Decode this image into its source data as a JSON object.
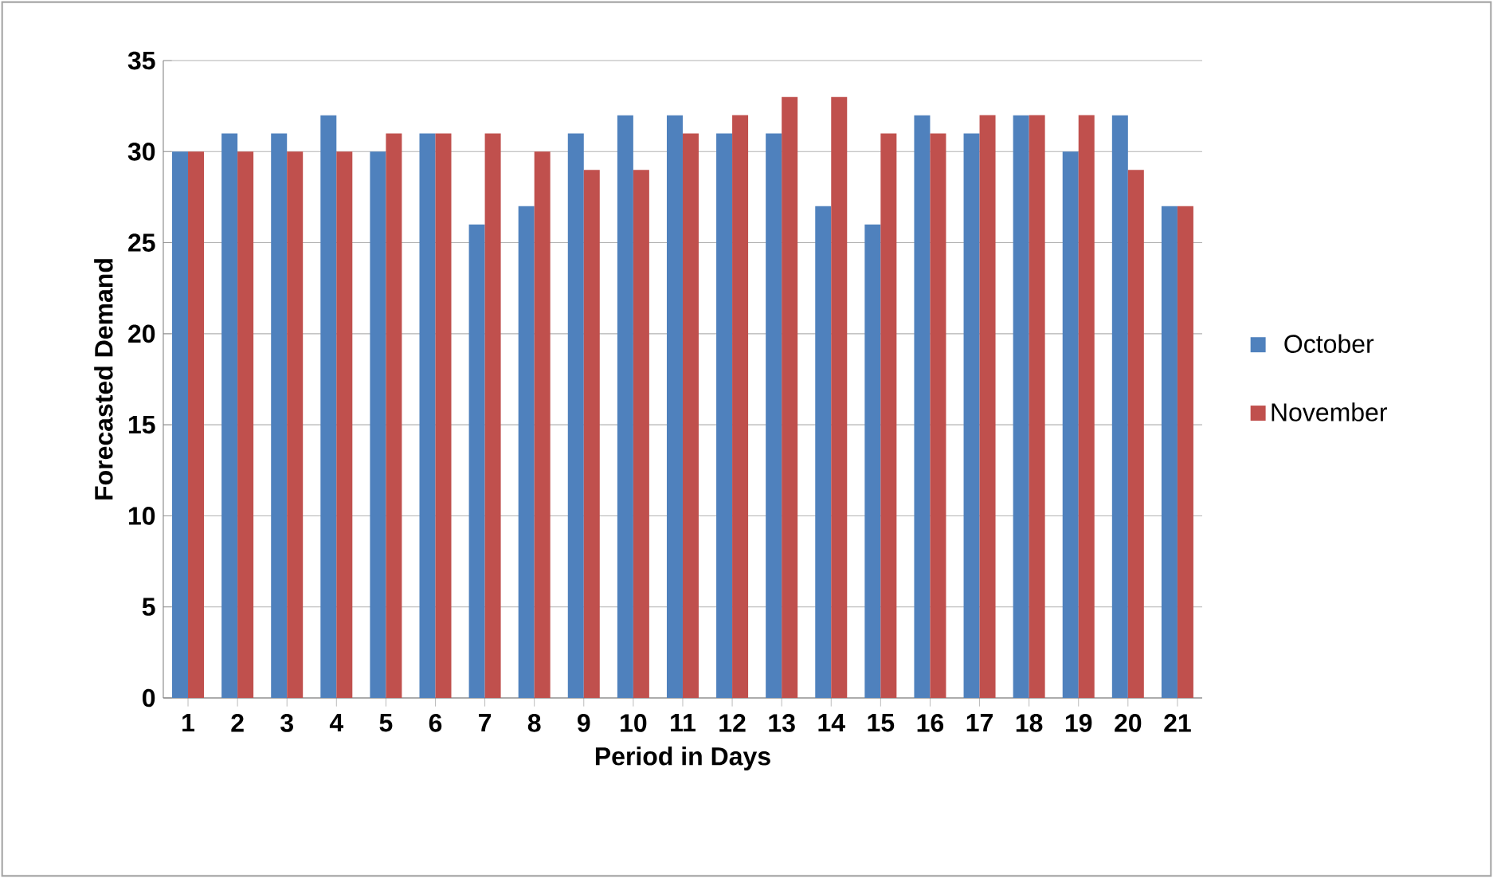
{
  "chart_data": {
    "type": "bar",
    "xlabel": "Period in Days",
    "ylabel": "Forecasted Demand",
    "categories": [
      "1",
      "2",
      "3",
      "4",
      "5",
      "6",
      "7",
      "8",
      "9",
      "10",
      "11",
      "12",
      "13",
      "14",
      "15",
      "16",
      "17",
      "18",
      "19",
      "20",
      "21"
    ],
    "series": [
      {
        "name": "October",
        "color": "#4f81bd",
        "values": [
          30,
          31,
          31,
          32,
          30,
          31,
          26,
          27,
          31,
          32,
          32,
          31,
          31,
          27,
          26,
          32,
          31,
          32,
          30,
          32,
          27
        ]
      },
      {
        "name": "November",
        "color": "#c0504d",
        "values": [
          30,
          30,
          30,
          30,
          31,
          31,
          31,
          30,
          29,
          29,
          31,
          32,
          33,
          33,
          31,
          31,
          32,
          32,
          32,
          29,
          27
        ]
      }
    ],
    "ylim": [
      0,
      35
    ],
    "yticks": [
      0,
      5,
      10,
      15,
      20,
      25,
      30,
      35
    ],
    "grid": "y",
    "legend": "right"
  }
}
